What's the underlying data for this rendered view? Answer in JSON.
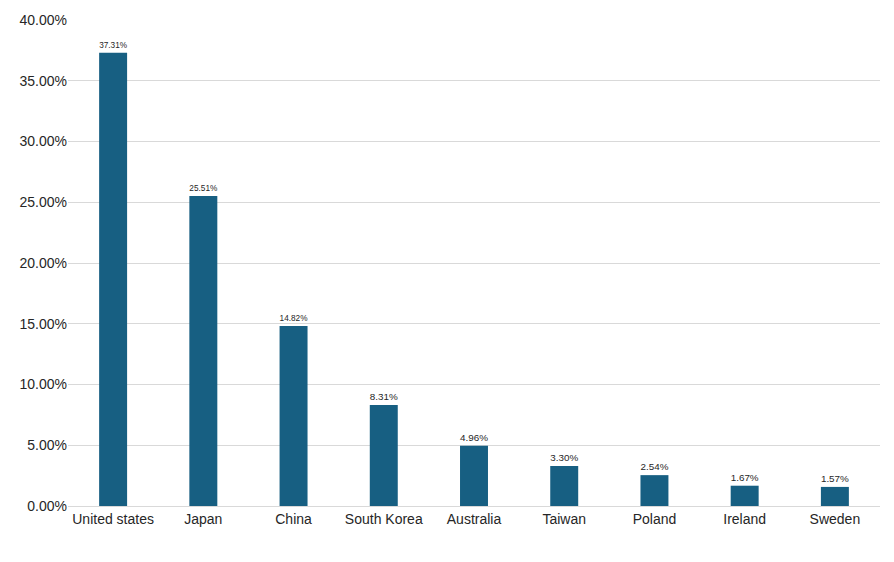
{
  "chart_data": {
    "type": "bar",
    "categories": [
      "United states",
      "Japan",
      "China",
      "South Korea",
      "Australia",
      "Taiwan",
      "Poland",
      "Ireland",
      "Sweden"
    ],
    "values": [
      37.31,
      25.51,
      14.82,
      8.31,
      4.96,
      3.3,
      2.54,
      1.67,
      1.57
    ],
    "value_labels": [
      "37.31%",
      "25.51%",
      "14.82%",
      "8.31%",
      "4.96%",
      "3.30%",
      "2.54%",
      "1.67%",
      "1.57%"
    ],
    "data_labels": true,
    "color": "#175f82",
    "ylim": [
      0,
      40
    ],
    "yticks": [
      {
        "value": 0,
        "label": "0.00%"
      },
      {
        "value": 5,
        "label": "5.00%"
      },
      {
        "value": 10,
        "label": "10.00%"
      },
      {
        "value": 15,
        "label": "15.00%"
      },
      {
        "value": 20,
        "label": "20.00%"
      },
      {
        "value": 25,
        "label": "25.00%"
      },
      {
        "value": 30,
        "label": "30.00%"
      },
      {
        "value": 35,
        "label": "35.00%"
      },
      {
        "value": 40,
        "label": "40.00%"
      }
    ],
    "grid": true
  }
}
